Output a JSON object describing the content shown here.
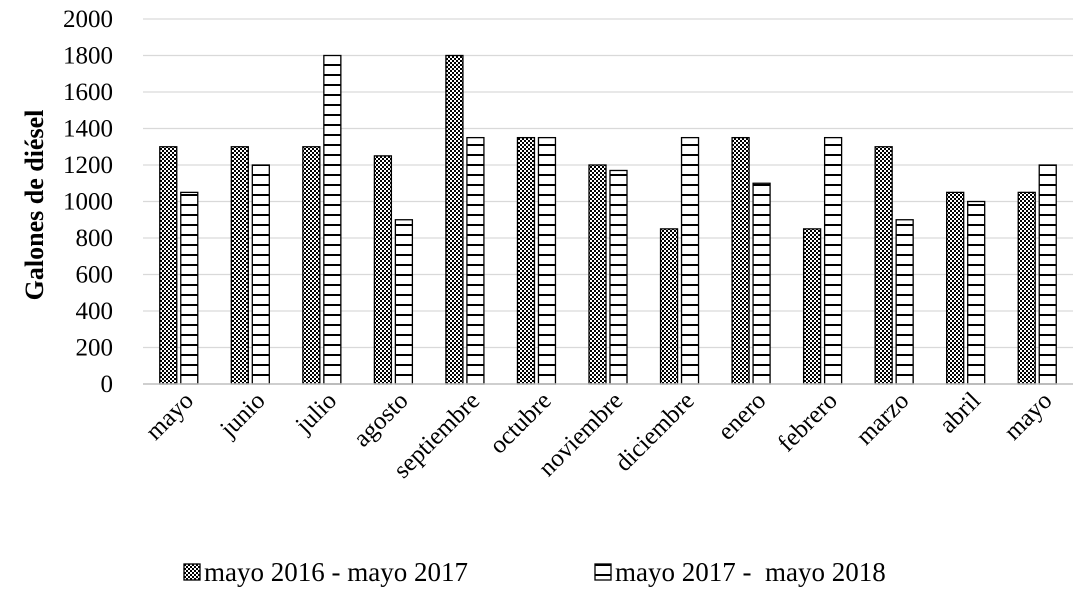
{
  "chart_data": {
    "type": "bar",
    "title": "",
    "xlabel": "",
    "ylabel": "Galones de diésel",
    "ylim": [
      0,
      2000
    ],
    "yticks": [
      "0",
      "200",
      "400",
      "600",
      "800",
      "1000",
      "1200",
      "1400",
      "1600",
      "1800",
      "2000"
    ],
    "categories": [
      "mayo",
      "junio",
      "julio",
      "agosto",
      "septiembre",
      "octubre",
      "noviembre",
      "diciembre",
      "enero",
      "febrero",
      "marzo",
      "abril",
      "mayo"
    ],
    "series": [
      {
        "name": "mayo 2016 - mayo 2017",
        "values": [
          1300,
          1300,
          1300,
          1250,
          1800,
          1350,
          1200,
          850,
          1350,
          850,
          1300,
          1050,
          1050
        ]
      },
      {
        "name": "mayo 2017 -  mayo 2018",
        "values": [
          1050,
          1200,
          1800,
          900,
          1350,
          1350,
          1170,
          1350,
          1100,
          1350,
          900,
          1000,
          1200
        ]
      }
    ],
    "grid": true,
    "legend": "bottom"
  }
}
